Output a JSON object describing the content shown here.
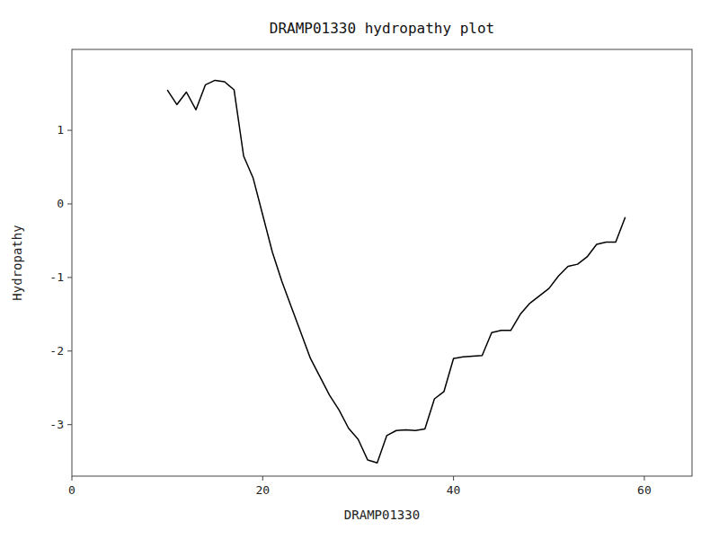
{
  "chart_data": {
    "type": "line",
    "title": "DRAMP01330 hydropathy plot",
    "xlabel": "DRAMP01330",
    "ylabel": "Hydropathy",
    "xlim": [
      0,
      65
    ],
    "ylim": [
      -3.7,
      2.1
    ],
    "xticks": [
      0,
      20,
      40,
      60
    ],
    "yticks": [
      -3,
      -2,
      -1,
      0,
      1
    ],
    "color": "#000000",
    "grid": false,
    "x": [
      10,
      11,
      12,
      13,
      14,
      15,
      16,
      17,
      18,
      19,
      20,
      21,
      22,
      23,
      24,
      25,
      26,
      27,
      28,
      29,
      30,
      31,
      32,
      33,
      34,
      35,
      36,
      37,
      38,
      39,
      40,
      41,
      42,
      43,
      44,
      45,
      46,
      47,
      48,
      49,
      50,
      51,
      52,
      53,
      54,
      55,
      56,
      57,
      58
    ],
    "values": [
      1.55,
      1.35,
      1.52,
      1.28,
      1.62,
      1.68,
      1.66,
      1.55,
      0.65,
      0.35,
      -0.15,
      -0.65,
      -1.05,
      -1.4,
      -1.75,
      -2.1,
      -2.35,
      -2.6,
      -2.8,
      -3.05,
      -3.2,
      -3.48,
      -3.52,
      -3.15,
      -3.08,
      -3.07,
      -3.08,
      -3.06,
      -2.65,
      -2.55,
      -2.1,
      -2.08,
      -2.07,
      -2.06,
      -1.75,
      -1.72,
      -1.72,
      -1.5,
      -1.35,
      -1.25,
      -1.15,
      -0.98,
      -0.85,
      -0.82,
      -0.72,
      -0.55,
      -0.52,
      -0.52,
      -0.18
    ]
  }
}
